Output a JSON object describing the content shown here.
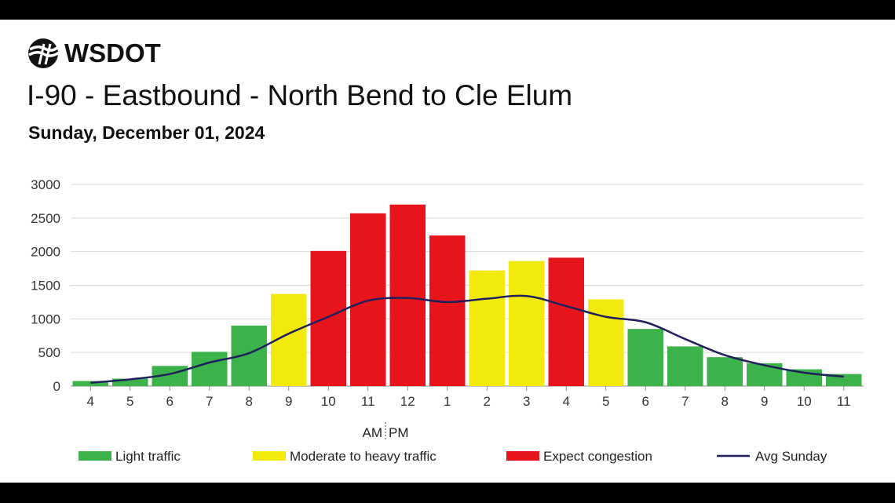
{
  "brand": {
    "logo_text": "WSDOT",
    "logo_icon": "wsdot-ferry-wave-icon"
  },
  "header": {
    "title": "I-90 - Eastbound - North Bend to Cle Elum",
    "subtitle": "Sunday, December 01, 2024"
  },
  "colors": {
    "light": "#3cb34a",
    "moderate": "#f2ea0c",
    "congestion": "#e8141c",
    "avg_line": "#1f1f5e",
    "grid": "#d9d9d9"
  },
  "chart_data": {
    "type": "bar",
    "title": "I-90 - Eastbound - North Bend to Cle Elum",
    "subtitle": "Sunday, December 01, 2024",
    "categories": [
      "4",
      "5",
      "6",
      "7",
      "8",
      "9",
      "10",
      "11",
      "12",
      "1",
      "2",
      "3",
      "4",
      "5",
      "6",
      "7",
      "8",
      "9",
      "10",
      "11"
    ],
    "meridiem_divider": {
      "after_category_index": 8,
      "left_label": "AM",
      "right_label": "PM"
    },
    "values": [
      75,
      110,
      300,
      510,
      900,
      1370,
      2010,
      2570,
      2700,
      2240,
      1720,
      1860,
      1910,
      1290,
      850,
      590,
      430,
      340,
      250,
      180
    ],
    "levels": [
      "light",
      "light",
      "light",
      "light",
      "light",
      "moderate",
      "congestion",
      "congestion",
      "congestion",
      "congestion",
      "moderate",
      "moderate",
      "congestion",
      "moderate",
      "light",
      "light",
      "light",
      "light",
      "light",
      "light"
    ],
    "series": [
      {
        "name": "Avg Sunday",
        "type": "line",
        "values": [
          50,
          100,
          180,
          350,
          490,
          780,
          1030,
          1270,
          1310,
          1250,
          1300,
          1340,
          1190,
          1030,
          950,
          700,
          460,
          310,
          200,
          140
        ]
      }
    ],
    "legend": [
      {
        "label": "Light traffic",
        "key": "light"
      },
      {
        "label": "Moderate to heavy traffic",
        "key": "moderate"
      },
      {
        "label": "Expect congestion",
        "key": "congestion"
      },
      {
        "label": "Avg Sunday",
        "key": "avg_line"
      }
    ],
    "legend_position": "bottom",
    "xlabel": "",
    "ylabel": "",
    "ylim": [
      0,
      3000
    ],
    "yticks": [
      0,
      500,
      1000,
      1500,
      2000,
      2500,
      3000
    ],
    "grid": true
  }
}
